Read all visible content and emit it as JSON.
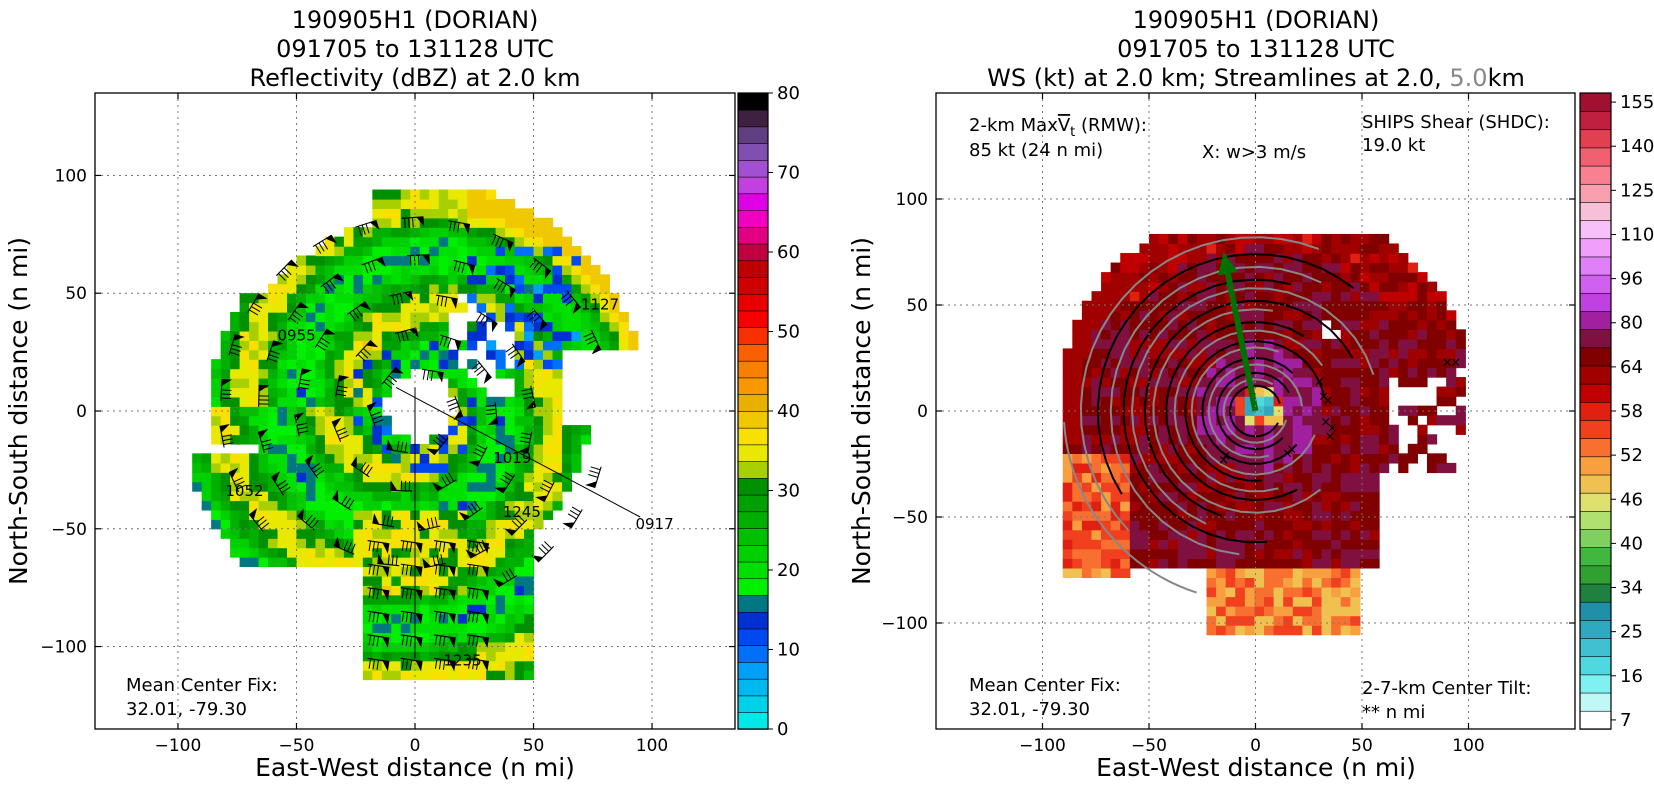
{
  "chart_data": [
    {
      "type": "heatmap",
      "title_lines": [
        "190905H1 (DORIAN)",
        "091705 to 131128 UTC",
        "Reflectivity (dBZ) at 2.0 km"
      ],
      "xlabel": "East-West distance (n mi)",
      "ylabel": "North-South distance (n mi)",
      "xlim": [
        -135,
        135
      ],
      "ylim": [
        -135,
        135
      ],
      "xticks": [
        -100,
        -50,
        0,
        50,
        100
      ],
      "yticks": [
        -100,
        -50,
        0,
        50,
        100
      ],
      "grid": true,
      "colorbar": {
        "min": 0,
        "max": 80,
        "ticks": [
          0,
          10,
          20,
          30,
          40,
          50,
          60,
          70,
          80
        ],
        "colors": [
          "#00e8e8",
          "#00d0e8",
          "#00b8f0",
          "#00a0f8",
          "#0070f8",
          "#0048f0",
          "#0030d0",
          "#007880",
          "#00f000",
          "#00e000",
          "#00d000",
          "#00c000",
          "#00b000",
          "#00a000",
          "#009000",
          "#a8d000",
          "#e8e800",
          "#f8e000",
          "#f0c800",
          "#e8b000",
          "#f89800",
          "#f88000",
          "#f86000",
          "#f83000",
          "#f80000",
          "#e80000",
          "#d00000",
          "#c00000",
          "#c00040",
          "#e00080",
          "#f000c0",
          "#e000e8",
          "#c040e0",
          "#a050d0",
          "#8050b0",
          "#604080",
          "#402040",
          "#000000"
        ]
      },
      "annotations": {
        "mean_center_fix": "Mean Center Fix:\n32.01, -79.30",
        "time_labels": [
          "0955",
          "0917",
          "1127",
          "1019",
          "1052",
          "1245",
          "1235"
        ]
      }
    },
    {
      "type": "heatmap",
      "title_lines": [
        "190905H1 (DORIAN)",
        "091705 to 131128 UTC"
      ],
      "title_line3": {
        "prefix": "WS (kt) at 2.0 km; Streamlines at 2.0, ",
        "highlight": "5.0",
        "suffix": "km",
        "highlight_color": "#888888"
      },
      "xlabel": "East-West distance (n mi)",
      "ylabel": "North-South distance (n mi)",
      "xlim": [
        -150,
        150
      ],
      "ylim": [
        -150,
        150
      ],
      "xticks": [
        -100,
        -50,
        0,
        50,
        100
      ],
      "yticks": [
        -100,
        -50,
        0,
        50,
        100
      ],
      "grid": true,
      "colorbar": {
        "ticks": [
          7,
          16,
          25,
          34,
          40,
          46,
          52,
          58,
          64,
          80,
          96,
          110,
          125,
          140,
          155
        ],
        "colors": [
          "#ffffff",
          "#c0f8f8",
          "#80f0f0",
          "#50d8e0",
          "#40c0d0",
          "#30a8c0",
          "#2090a8",
          "#208040",
          "#30a030",
          "#40b840",
          "#80d060",
          "#b0e070",
          "#e0e070",
          "#f0c050",
          "#f8a040",
          "#f87030",
          "#f04020",
          "#e02010",
          "#c00000",
          "#a00000",
          "#800000",
          "#801040",
          "#a020a0",
          "#c040e0",
          "#d060f0",
          "#e080f8",
          "#f0a0f8",
          "#f8c0f8",
          "#f8c0d8",
          "#f8a0b0",
          "#f88090",
          "#f06070",
          "#e04050",
          "#c02040",
          "#a01030"
        ]
      },
      "annotations": {
        "max_vt": "2-km MaxVt (RMW):",
        "max_vt_prefix": "2-km Max",
        "max_vt_var": "V",
        "max_vt_sub": "t",
        "max_vt_suffix": " (RMW):",
        "max_vt_value": "85 kt (24 n mi)",
        "w_note": "X: w>3 m/s",
        "ships_label": "SHIPS Shear (SHDC):",
        "ships_value": "19.0 kt",
        "mean_center_fix": "Mean Center Fix:\n32.01, -79.30",
        "tilt_label": "2-7-km Center Tilt:",
        "tilt_value": "** n mi",
        "shear_vector": {
          "x": -15,
          "y": 75
        }
      },
      "colors": {
        "ships": "#008000",
        "tilt": "#ff0000",
        "shear_arrow": "#007000"
      }
    }
  ]
}
